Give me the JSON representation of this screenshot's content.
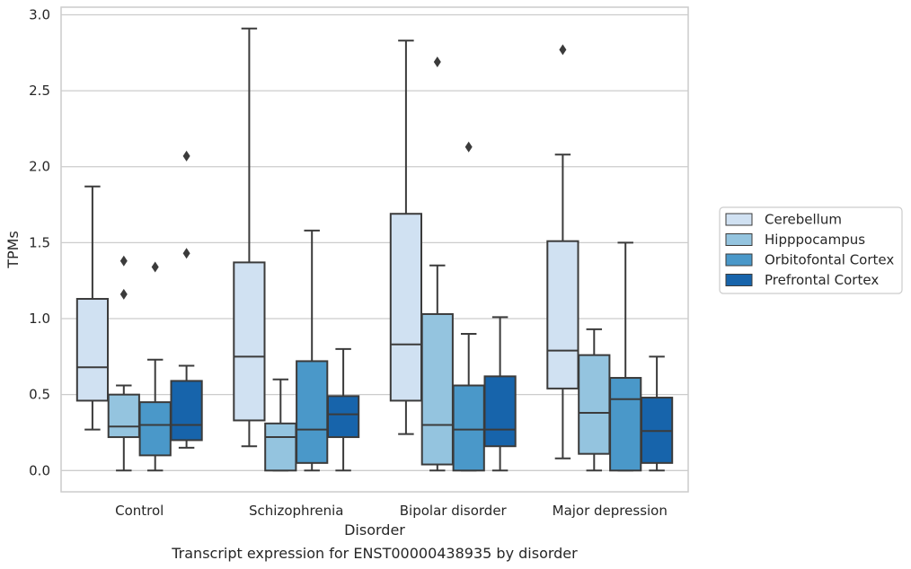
{
  "chart_data": {
    "type": "box",
    "caption": "Transcript expression for ENST00000438935 by disorder",
    "xlabel": "Disorder",
    "ylabel": "TPMs",
    "ylim": [
      -0.14,
      3.05
    ],
    "yticks": [
      "0.0",
      "0.5",
      "1.0",
      "1.5",
      "2.0",
      "2.5",
      "3.0"
    ],
    "grid": "horizontal",
    "legend_position": "right",
    "categories": [
      "Control",
      "Schizophrenia",
      "Bipolar disorder",
      "Major depression"
    ],
    "series": [
      {
        "name": "Cerebellum",
        "color": "#d0e1f2",
        "boxes": [
          {
            "whislo": 0.27,
            "q1": 0.46,
            "med": 0.68,
            "q3": 1.13,
            "whishi": 1.87,
            "fliers": []
          },
          {
            "whislo": 0.16,
            "q1": 0.33,
            "med": 0.75,
            "q3": 1.37,
            "whishi": 2.91,
            "fliers": []
          },
          {
            "whislo": 0.24,
            "q1": 0.46,
            "med": 0.83,
            "q3": 1.69,
            "whishi": 2.83,
            "fliers": []
          },
          {
            "whislo": 0.08,
            "q1": 0.54,
            "med": 0.79,
            "q3": 1.51,
            "whishi": 2.08,
            "fliers": [
              2.77
            ]
          }
        ]
      },
      {
        "name": "Hipppocampus",
        "color": "#94c4df",
        "boxes": [
          {
            "whislo": 0.0,
            "q1": 0.22,
            "med": 0.29,
            "q3": 0.5,
            "whishi": 0.56,
            "fliers": [
              1.16,
              1.38
            ]
          },
          {
            "whislo": 0.0,
            "q1": 0.0,
            "med": 0.22,
            "q3": 0.31,
            "whishi": 0.6,
            "fliers": []
          },
          {
            "whislo": 0.0,
            "q1": 0.04,
            "med": 0.3,
            "q3": 1.03,
            "whishi": 1.35,
            "fliers": [
              2.69
            ]
          },
          {
            "whislo": 0.0,
            "q1": 0.11,
            "med": 0.38,
            "q3": 0.76,
            "whishi": 0.93,
            "fliers": []
          }
        ]
      },
      {
        "name": "Orbitofontal Cortex",
        "color": "#4a98c9",
        "boxes": [
          {
            "whislo": 0.0,
            "q1": 0.1,
            "med": 0.3,
            "q3": 0.45,
            "whishi": 0.73,
            "fliers": [
              1.34
            ]
          },
          {
            "whislo": 0.0,
            "q1": 0.05,
            "med": 0.27,
            "q3": 0.72,
            "whishi": 1.58,
            "fliers": []
          },
          {
            "whislo": 0.0,
            "q1": 0.0,
            "med": 0.27,
            "q3": 0.56,
            "whishi": 0.9,
            "fliers": [
              2.13
            ]
          },
          {
            "whislo": 0.0,
            "q1": 0.0,
            "med": 0.47,
            "q3": 0.61,
            "whishi": 1.5,
            "fliers": []
          }
        ]
      },
      {
        "name": "Prefrontal Cortex",
        "color": "#1764ab",
        "boxes": [
          {
            "whislo": 0.15,
            "q1": 0.2,
            "med": 0.3,
            "q3": 0.59,
            "whishi": 0.69,
            "fliers": [
              1.43,
              2.07
            ]
          },
          {
            "whislo": 0.0,
            "q1": 0.22,
            "med": 0.37,
            "q3": 0.49,
            "whishi": 0.8,
            "fliers": []
          },
          {
            "whislo": 0.0,
            "q1": 0.16,
            "med": 0.27,
            "q3": 0.62,
            "whishi": 1.01,
            "fliers": []
          },
          {
            "whislo": 0.0,
            "q1": 0.05,
            "med": 0.26,
            "q3": 0.48,
            "whishi": 0.75,
            "fliers": []
          }
        ]
      }
    ]
  }
}
